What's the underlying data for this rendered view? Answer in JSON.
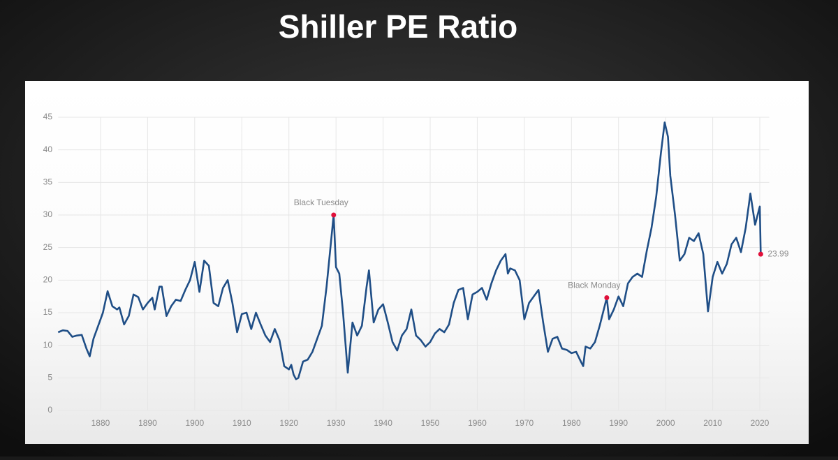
{
  "chart_data": {
    "type": "line",
    "title": "Shiller PE Ratio",
    "x": [
      1871,
      1872,
      1873,
      1874,
      1875,
      1876,
      1877,
      1877.7,
      1878.5,
      1879.5,
      1880.5,
      1881.5,
      1882.5,
      1883.5,
      1884,
      1885,
      1886,
      1887,
      1888,
      1889,
      1890,
      1891,
      1891.5,
      1892.5,
      1893,
      1894,
      1895,
      1896,
      1897,
      1898,
      1899,
      1900,
      1901,
      1902,
      1903,
      1904,
      1905,
      1906,
      1907,
      1908,
      1909,
      1910,
      1911,
      1912,
      1913,
      1914,
      1915,
      1916,
      1917,
      1918,
      1919,
      1920,
      1920.5,
      1921,
      1921.5,
      1922,
      1923,
      1924,
      1925,
      1926,
      1927,
      1928,
      1929.5,
      1930,
      1930.7,
      1931.5,
      1932.5,
      1933.5,
      1934.5,
      1935.5,
      1936.5,
      1937,
      1938,
      1939,
      1940,
      1941,
      1942,
      1943,
      1944,
      1945,
      1946,
      1947,
      1948,
      1949,
      1950,
      1951,
      1952,
      1953,
      1954,
      1955,
      1956,
      1957,
      1958,
      1959,
      1960,
      1961,
      1962,
      1963,
      1964,
      1965,
      1966,
      1966.5,
      1967,
      1968,
      1969,
      1970,
      1971,
      1972,
      1973,
      1974,
      1975,
      1976,
      1977,
      1978,
      1979,
      1980,
      1981,
      1982,
      1982.5,
      1983,
      1984,
      1985,
      1986,
      1987.5,
      1988,
      1989,
      1990,
      1991,
      1992,
      1993,
      1994,
      1995,
      1996,
      1997,
      1998,
      1999,
      1999.8,
      2000.5,
      2001,
      2002,
      2003,
      2004,
      2005,
      2006,
      2007,
      2008,
      2009,
      2010,
      2011,
      2012,
      2013,
      2014,
      2015,
      2016,
      2017,
      2018,
      2019,
      2020,
      2020.2
    ],
    "values": [
      12,
      12.3,
      12.2,
      11.3,
      11.5,
      11.6,
      9.5,
      8.3,
      11,
      13,
      15,
      18.3,
      16,
      15.5,
      15.8,
      13.2,
      14.5,
      17.8,
      17.4,
      15.5,
      16.5,
      17.3,
      15.5,
      19,
      19,
      14.5,
      16,
      17,
      16.8,
      18.5,
      20,
      22.8,
      18.2,
      23,
      22.2,
      16.5,
      16,
      18.8,
      20,
      16.5,
      12,
      14.8,
      15,
      12.5,
      15,
      13.2,
      11.5,
      10.5,
      12.5,
      10.8,
      6.8,
      6.3,
      7,
      5.5,
      4.8,
      5,
      7.5,
      7.8,
      9,
      11,
      13,
      19,
      30,
      22,
      21,
      15,
      5.8,
      13.5,
      11.5,
      13,
      19,
      21.5,
      13.5,
      15.5,
      16.3,
      13.5,
      10.5,
      9.2,
      11.5,
      12.5,
      15.5,
      11.5,
      10.8,
      9.8,
      10.5,
      11.8,
      12.5,
      12,
      13.2,
      16.5,
      18.5,
      18.8,
      14,
      17.8,
      18.2,
      18.8,
      17,
      19.5,
      21.5,
      23,
      24,
      21,
      21.8,
      21.5,
      20,
      14,
      16.5,
      17.5,
      18.5,
      13.5,
      9,
      11,
      11.3,
      9.5,
      9.3,
      8.8,
      9,
      7.5,
      6.8,
      9.8,
      9.5,
      10.5,
      13,
      17.3,
      14,
      15.5,
      17.5,
      16,
      19.5,
      20.5,
      21,
      20.5,
      24.5,
      28,
      32.8,
      39.5,
      44.2,
      42,
      36,
      30,
      23,
      24,
      26.5,
      26,
      27.2,
      24,
      15.2,
      20.5,
      22.8,
      21,
      22.5,
      25.5,
      26.5,
      24.3,
      28,
      33.3,
      28.5,
      31.3,
      23.99
    ],
    "color": "#1f4e86",
    "annotations": [
      {
        "label": "Black Tuesday",
        "x": 1929.5,
        "y": 30
      },
      {
        "label": "Black Monday",
        "x": 1987.5,
        "y": 17.3
      }
    ],
    "xlim": [
      1871,
      2022
    ],
    "xticks": [
      1880,
      1890,
      1900,
      1910,
      1920,
      1930,
      1940,
      1950,
      1960,
      1970,
      1980,
      1990,
      2000,
      2010,
      2020
    ],
    "ylim": [
      0,
      45
    ],
    "yticks": [
      0,
      5,
      10,
      15,
      20,
      25,
      30,
      35,
      40,
      45
    ],
    "grid": true
  }
}
